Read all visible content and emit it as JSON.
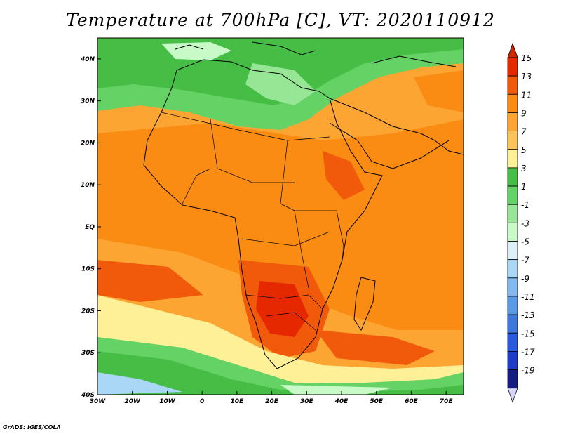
{
  "title": "Temperature at 700hPa [C], VT: 2020110912",
  "credit": "GrADS: IGES/COLA",
  "map": {
    "lon_range": [
      -30,
      75
    ],
    "lat_range": [
      -40,
      45
    ],
    "lon_ticks": [
      {
        "value": -30,
        "label": "30W"
      },
      {
        "value": -20,
        "label": "20W"
      },
      {
        "value": -10,
        "label": "10W"
      },
      {
        "value": 0,
        "label": "0"
      },
      {
        "value": 10,
        "label": "10E"
      },
      {
        "value": 20,
        "label": "20E"
      },
      {
        "value": 30,
        "label": "30E"
      },
      {
        "value": 40,
        "label": "40E"
      },
      {
        "value": 50,
        "label": "50E"
      },
      {
        "value": 60,
        "label": "60E"
      },
      {
        "value": 70,
        "label": "70E"
      }
    ],
    "lat_ticks": [
      {
        "value": 40,
        "label": "40N"
      },
      {
        "value": 30,
        "label": "30N"
      },
      {
        "value": 20,
        "label": "20N"
      },
      {
        "value": 10,
        "label": "10N"
      },
      {
        "value": 0,
        "label": "EQ"
      },
      {
        "value": -10,
        "label": "10S"
      },
      {
        "value": -20,
        "label": "20S"
      },
      {
        "value": -30,
        "label": "30S"
      },
      {
        "value": -40,
        "label": "40S"
      }
    ]
  },
  "colorbar": {
    "bins": [
      {
        "label": "15",
        "color": "#e62800"
      },
      {
        "label": "13",
        "color": "#f05a0a"
      },
      {
        "label": "11",
        "color": "#fa8c14"
      },
      {
        "label": "9",
        "color": "#fca532"
      },
      {
        "label": "7",
        "color": "#fdc35a"
      },
      {
        "label": "5",
        "color": "#fef096"
      },
      {
        "label": "3",
        "color": "#46be46"
      },
      {
        "label": "1",
        "color": "#64d264"
      },
      {
        "label": "-1",
        "color": "#96e696"
      },
      {
        "label": "-3",
        "color": "#c8fac8"
      },
      {
        "label": "-5",
        "color": "#dcf0fa"
      },
      {
        "label": "-7",
        "color": "#aad7f5"
      },
      {
        "label": "-9",
        "color": "#82b9f0"
      },
      {
        "label": "-11",
        "color": "#5a9be6"
      },
      {
        "label": "-13",
        "color": "#3c78dc"
      },
      {
        "label": "-15",
        "color": "#285adc"
      },
      {
        "label": "-17",
        "color": "#1e3cc8"
      },
      {
        "label": "-19",
        "color": "#141e82"
      }
    ],
    "over_color": "#d22800",
    "under_color": "#d7d7fa"
  }
}
